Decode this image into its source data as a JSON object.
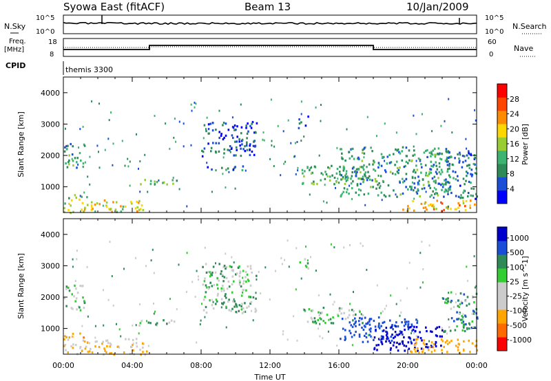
{
  "header": {
    "station": "Syowa East (fitACF)",
    "beam": "Beam 13",
    "date": "10/Jan/2009"
  },
  "panels": {
    "nsky_label": "N.Sky",
    "nsearch_label": "N.Search",
    "nsky_ticks": [
      "10^5",
      "10^0"
    ],
    "nsearch_ticks": [
      "10^5",
      "10^0"
    ],
    "freq_label_1": "Freq.",
    "freq_label_2": "[MHz]",
    "freq_ticks": [
      "18",
      "8"
    ],
    "nave_label": "Nave",
    "nave_ticks": [
      "60",
      "0"
    ],
    "cpid_label": "CPID",
    "cpid_value": "themis 3300"
  },
  "colors": {
    "power": [
      "#0000ff",
      "#1a4ed8",
      "#2e8b57",
      "#3cb371",
      "#9acd32",
      "#ffd700",
      "#ff8c00",
      "#ff4500",
      "#ff0000"
    ],
    "velocity": [
      "#ff0000",
      "#ff6a00",
      "#ffa500",
      "#cccccc",
      "#cccccc",
      "#32cd32",
      "#2e8b57",
      "#1a4ed8",
      "#0000cd"
    ]
  },
  "chart_data": [
    {
      "type": "heatmap",
      "name": "power",
      "xlabel": "",
      "ylabel": "Slant Range [km]",
      "x_ticks": [
        "00:00",
        "04:00",
        "08:00",
        "12:00",
        "16:00",
        "20:00",
        "00:00"
      ],
      "y_ticks": [
        1000,
        2000,
        3000,
        4000
      ],
      "ylim": [
        180,
        4500
      ],
      "colorbar_label": "Power [dB]",
      "colorbar_ticks": [
        4,
        8,
        12,
        16,
        20,
        24,
        28
      ],
      "colorbar_range": [
        0,
        32
      ],
      "regions": [
        {
          "t0": 0.0,
          "t1": 4.8,
          "r0": 200,
          "r1": 600,
          "level": 18
        },
        {
          "t0": 0.0,
          "t1": 1.4,
          "r0": 600,
          "r1": 800,
          "level": 14
        },
        {
          "t0": 0.0,
          "t1": 1.2,
          "r0": 1600,
          "r1": 2400,
          "level": 10
        },
        {
          "t0": 4.2,
          "t1": 6.6,
          "r0": 1100,
          "r1": 1300,
          "level": 12
        },
        {
          "t0": 8.0,
          "t1": 11.2,
          "r0": 2000,
          "r1": 3100,
          "level": 6
        },
        {
          "t0": 8.2,
          "t1": 10.8,
          "r0": 1550,
          "r1": 1700,
          "level": 8
        },
        {
          "t0": 13.6,
          "t1": 14.2,
          "r0": 2900,
          "r1": 3300,
          "level": 6
        },
        {
          "t0": 13.8,
          "t1": 17.5,
          "r0": 1100,
          "r1": 1700,
          "level": 12
        },
        {
          "t0": 16.0,
          "t1": 22.5,
          "r0": 700,
          "r1": 2300,
          "level": 10
        },
        {
          "t0": 19.5,
          "t1": 24.0,
          "r0": 250,
          "r1": 600,
          "level": 22
        },
        {
          "t0": 22.0,
          "t1": 24.0,
          "r0": 600,
          "r1": 2200,
          "level": 8
        }
      ]
    },
    {
      "type": "heatmap",
      "name": "velocity",
      "xlabel": "Time UT",
      "ylabel": "Slant Range [km]",
      "x_ticks": [
        "00:00",
        "04:00",
        "08:00",
        "12:00",
        "16:00",
        "20:00",
        "00:00"
      ],
      "y_ticks": [
        1000,
        2000,
        3000,
        4000
      ],
      "ylim": [
        180,
        4500
      ],
      "colorbar_label": "Velocity [m s^-1]",
      "colorbar_ticks": [
        "1000",
        "500",
        "100",
        "25",
        "-25",
        "-100",
        "-500",
        "-1000"
      ],
      "regions": [
        {
          "t0": 0.0,
          "t1": 4.8,
          "r0": 200,
          "r1": 700,
          "level": -100
        },
        {
          "t0": 0.0,
          "t1": 1.4,
          "r0": 700,
          "r1": 900,
          "level": -500
        },
        {
          "t0": 0.0,
          "t1": 1.2,
          "r0": 1600,
          "r1": 2400,
          "level": 0
        },
        {
          "t0": 4.2,
          "t1": 6.6,
          "r0": 1100,
          "r1": 1300,
          "level": 0
        },
        {
          "t0": 8.0,
          "t1": 11.2,
          "r0": 1500,
          "r1": 3100,
          "level": 0
        },
        {
          "t0": 13.6,
          "t1": 14.2,
          "r0": 2900,
          "r1": 3300,
          "level": 0
        },
        {
          "t0": 13.8,
          "t1": 17.5,
          "r0": 1200,
          "r1": 1700,
          "level": 0
        },
        {
          "t0": 16.0,
          "t1": 20.5,
          "r0": 600,
          "r1": 1400,
          "level": 300
        },
        {
          "t0": 18.0,
          "t1": 22.0,
          "r0": 300,
          "r1": 1100,
          "level": 700
        },
        {
          "t0": 20.0,
          "t1": 24.0,
          "r0": 250,
          "r1": 700,
          "level": -300
        },
        {
          "t0": 22.0,
          "t1": 24.0,
          "r0": 800,
          "r1": 2200,
          "level": 60
        }
      ]
    }
  ]
}
